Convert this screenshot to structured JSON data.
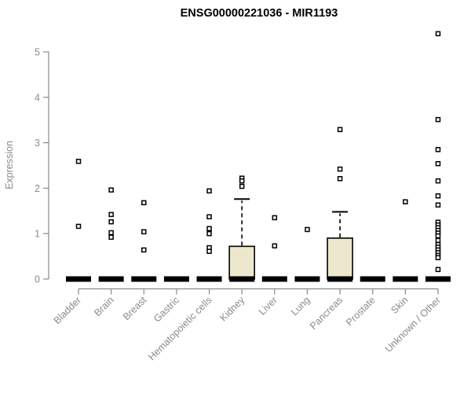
{
  "chart_data": {
    "type": "box",
    "title": "ENSG00000221036 - MIR1193",
    "ylabel": "Expression",
    "xlabel": "",
    "ylim": [
      0,
      5
    ],
    "yticks": [
      0,
      1,
      2,
      3,
      4,
      5
    ],
    "grid": "off",
    "legend": "none",
    "marker": "open-square",
    "categories": [
      "Bladder",
      "Brain",
      "Breast",
      "Gastric",
      "Hematopoietic cells",
      "Kidney",
      "Liver",
      "Lung",
      "Pancreas",
      "Prostate",
      "Skin",
      "Unknown / Other"
    ],
    "boxes": [
      {
        "category": "Bladder",
        "q1": 0,
        "median": 0,
        "q3": 0,
        "whisker_low": 0,
        "whisker_high": 0,
        "outliers": [
          2.59,
          1.16
        ]
      },
      {
        "category": "Brain",
        "q1": 0,
        "median": 0,
        "q3": 0,
        "whisker_low": 0,
        "whisker_high": 0,
        "outliers": [
          1.96,
          1.42,
          1.26,
          1.02,
          0.92
        ]
      },
      {
        "category": "Breast",
        "q1": 0,
        "median": 0,
        "q3": 0,
        "whisker_low": 0,
        "whisker_high": 0,
        "outliers": [
          1.68,
          1.04,
          0.64
        ]
      },
      {
        "category": "Gastric",
        "q1": 0,
        "median": 0,
        "q3": 0,
        "whisker_low": 0,
        "whisker_high": 0,
        "outliers": []
      },
      {
        "category": "Hematopoietic cells",
        "q1": 0,
        "median": 0,
        "q3": 0,
        "whisker_low": 0,
        "whisker_high": 0,
        "outliers": [
          1.94,
          1.37,
          1.11,
          1.0,
          0.69,
          0.61
        ]
      },
      {
        "category": "Kidney",
        "q1": 0,
        "median": 0,
        "q3": 0.72,
        "whisker_low": 0,
        "whisker_high": 1.76,
        "outliers": [
          2.22,
          2.16,
          2.04
        ]
      },
      {
        "category": "Liver",
        "q1": 0,
        "median": 0,
        "q3": 0,
        "whisker_low": 0,
        "whisker_high": 0,
        "outliers": [
          1.35,
          0.73
        ]
      },
      {
        "category": "Lung",
        "q1": 0,
        "median": 0,
        "q3": 0,
        "whisker_low": 0,
        "whisker_high": 0,
        "outliers": [
          1.09
        ]
      },
      {
        "category": "Pancreas",
        "q1": 0,
        "median": 0,
        "q3": 0.9,
        "whisker_low": 0,
        "whisker_high": 1.48,
        "outliers": [
          3.29,
          2.42,
          2.21
        ]
      },
      {
        "category": "Prostate",
        "q1": 0,
        "median": 0,
        "q3": 0,
        "whisker_low": 0,
        "whisker_high": 0,
        "outliers": []
      },
      {
        "category": "Skin",
        "q1": 0,
        "median": 0,
        "q3": 0,
        "whisker_low": 0,
        "whisker_high": 0,
        "outliers": [
          1.7
        ]
      },
      {
        "category": "Unknown / Other",
        "q1": 0,
        "median": 0,
        "q3": 0,
        "whisker_low": 0,
        "whisker_high": 0,
        "outliers": [
          5.4,
          3.51,
          2.85,
          2.54,
          2.16,
          1.83,
          1.63,
          1.25,
          1.19,
          1.13,
          1.07,
          1.01,
          0.95,
          0.85,
          0.76,
          0.7,
          0.64,
          0.58,
          0.52,
          0.47,
          0.21
        ]
      }
    ],
    "colors": {
      "background": "#ffffff",
      "box_fill": "#ede8cd",
      "box_stroke": "#000000",
      "median": "#000000",
      "whisker": "#000000",
      "outlier_stroke": "#000000",
      "outlier_fill": "#ffffff",
      "axis": "#8a8a8a",
      "tick_label": "#8a8a8a",
      "title": "#000000"
    }
  }
}
